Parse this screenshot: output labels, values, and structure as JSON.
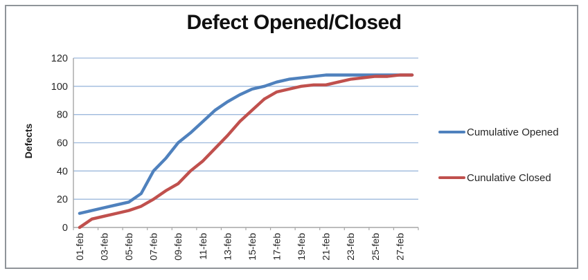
{
  "window": {
    "background": "#ffffff",
    "frame_border_color": "#8f9499"
  },
  "chart_data": {
    "type": "line",
    "title": "Defect Opened/Closed",
    "xlabel": "",
    "ylabel": "Defects",
    "ylim": [
      0,
      120
    ],
    "y_ticks": [
      0,
      20,
      40,
      60,
      80,
      100,
      120
    ],
    "x_tick_labels": [
      "01-feb",
      "03-feb",
      "05-feb",
      "07-feb",
      "09-feb",
      "11-feb",
      "13-feb",
      "15-feb",
      "17-feb",
      "19-feb",
      "21-feb",
      "23-feb",
      "25-feb",
      "27-feb"
    ],
    "points_per_tick": 2,
    "grid": "horizontal gridlines only",
    "gridline_color": "#9DB9DC",
    "axis_line_color": "#A6A6A6",
    "tick_label_color": "#262626",
    "legend_position": "right",
    "series": [
      {
        "name": "Cumulative Opened",
        "color": "#4F81BD",
        "values": [
          10,
          12,
          14,
          16,
          18,
          24,
          40,
          49,
          60,
          67,
          75,
          83,
          89,
          94,
          98,
          100,
          103,
          105,
          106,
          107,
          108,
          108,
          108,
          108,
          108,
          108,
          108,
          108
        ]
      },
      {
        "name": "Cunulative Closed",
        "color": "#C0504D",
        "values": [
          0,
          6,
          8,
          10,
          12,
          15,
          20,
          26,
          31,
          40,
          47,
          56,
          65,
          75,
          83,
          91,
          96,
          98,
          100,
          101,
          101,
          103,
          105,
          106,
          107,
          107,
          108,
          108
        ]
      }
    ]
  }
}
